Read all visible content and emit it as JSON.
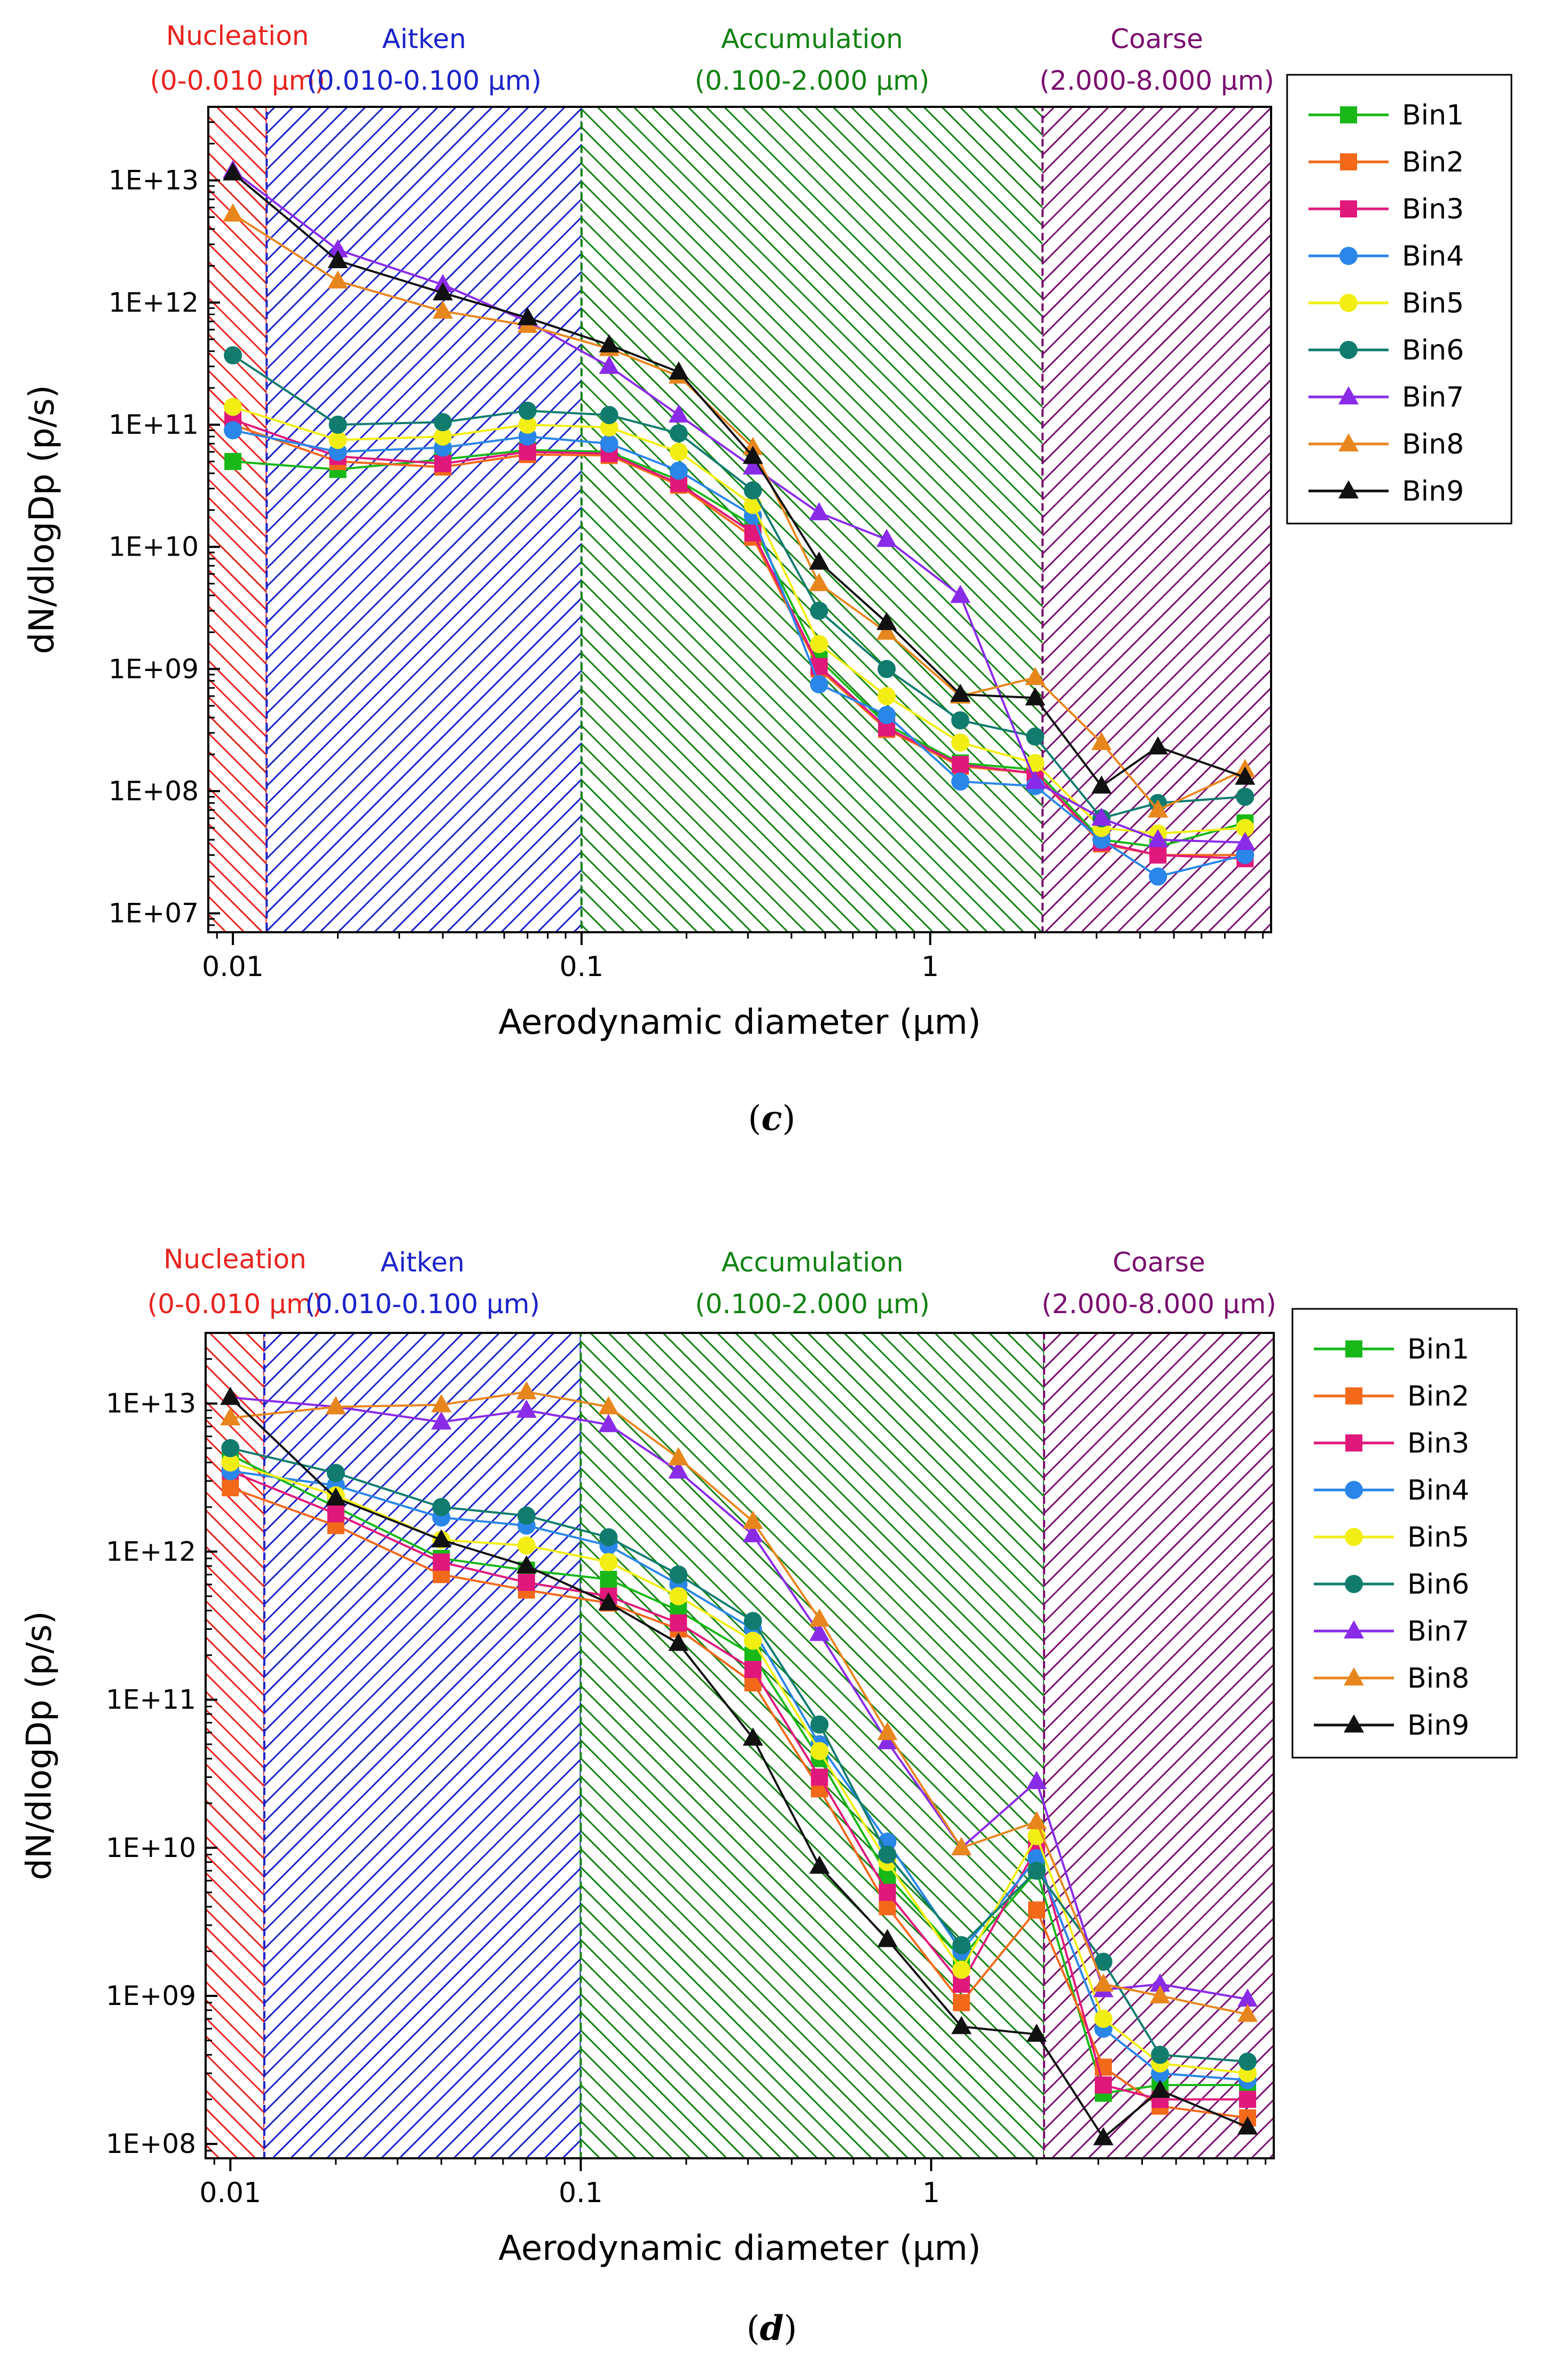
{
  "figure": {
    "panel_labels": [
      {
        "open": "(",
        "letter": "c",
        "close": ")"
      },
      {
        "open": "(",
        "letter": "d",
        "close": ")"
      }
    ]
  },
  "colors": {
    "nucleation": "#e8231e",
    "aitken": "#1a22c8",
    "accumulation": "#128212",
    "coarse": "#7a0f6e",
    "Bin1": "#18b818",
    "Bin2": "#f2691a",
    "Bin3": "#e0187c",
    "Bin4": "#2a86e8",
    "Bin5": "#f2ee14",
    "Bin6": "#117c6e",
    "Bin7": "#8a2be8",
    "Bin8": "#e8861e",
    "Bin9": "#111111"
  },
  "chart_data": [
    {
      "type": "line",
      "panel": "c",
      "xlabel": "Aerodynamic diameter (μm)",
      "ylabel": "dN/dlogDp (p/s)",
      "xscale": "log",
      "yscale": "log",
      "xlim": [
        0.0085,
        9.5
      ],
      "ylim": [
        7000000,
        40000000000000
      ],
      "xticks": [
        {
          "v": 0.01,
          "label": "0.01"
        },
        {
          "v": 0.1,
          "label": "0.1"
        },
        {
          "v": 1,
          "label": "1"
        }
      ],
      "yticks": [
        {
          "v": 10000000,
          "label": "1E+07"
        },
        {
          "v": 100000000,
          "label": "1E+08"
        },
        {
          "v": 1000000000,
          "label": "1E+09"
        },
        {
          "v": 10000000000,
          "label": "1E+10"
        },
        {
          "v": 100000000000,
          "label": "1E+11"
        },
        {
          "v": 1000000000000,
          "label": "1E+12"
        },
        {
          "v": 10000000000000,
          "label": "1E+13"
        }
      ],
      "regions": [
        {
          "key": "nucleation",
          "name": "Nucleation",
          "range_label": "(0-0.010 μm)",
          "x0": 0.0085,
          "x1": 0.0125
        },
        {
          "key": "aitken",
          "name": "Aitken",
          "range_label": "(0.010-0.100 μm)",
          "x0": 0.0125,
          "x1": 0.1
        },
        {
          "key": "accumulation",
          "name": "Accumulation",
          "range_label": "(0.100-2.000 μm)",
          "x0": 0.1,
          "x1": 2.1
        },
        {
          "key": "coarse",
          "name": "Coarse",
          "range_label": "(2.000-8.000 μm)",
          "x0": 2.1,
          "x1": 9.5
        }
      ],
      "x": [
        0.01,
        0.02,
        0.04,
        0.07,
        0.12,
        0.19,
        0.31,
        0.48,
        0.75,
        1.22,
        2.0,
        3.1,
        4.5,
        8.0
      ],
      "series": [
        {
          "name": "Bin1",
          "marker": "square",
          "values": [
            50000000000,
            43000000000,
            52000000000,
            62000000000,
            60000000000,
            35000000000,
            15000000000,
            1200000000,
            350000000,
            170000000,
            150000000,
            40000000,
            35000000,
            55000000
          ]
        },
        {
          "name": "Bin2",
          "marker": "square",
          "values": [
            100000000000,
            50000000000,
            45000000000,
            57000000000,
            56000000000,
            32000000000,
            12000000000,
            1000000000,
            320000000,
            160000000,
            140000000,
            37000000,
            30000000,
            30000000
          ]
        },
        {
          "name": "Bin3",
          "marker": "square",
          "values": [
            110000000000,
            55000000000,
            48000000000,
            60000000000,
            58000000000,
            33000000000,
            13000000000,
            1050000000,
            330000000,
            165000000,
            140000000,
            38000000,
            30000000,
            28000000
          ]
        },
        {
          "name": "Bin4",
          "marker": "circle",
          "values": [
            90000000000,
            60000000000,
            65000000000,
            80000000000,
            70000000000,
            42000000000,
            18000000000,
            750000000,
            420000000,
            120000000,
            110000000,
            40000000,
            20000000,
            30000000
          ]
        },
        {
          "name": "Bin5",
          "marker": "circle",
          "values": [
            140000000000,
            75000000000,
            80000000000,
            100000000000,
            95000000000,
            60000000000,
            22000000000,
            1600000000,
            600000000,
            250000000,
            170000000,
            50000000,
            45000000,
            50000000
          ]
        },
        {
          "name": "Bin6",
          "marker": "circle",
          "values": [
            370000000000,
            100000000000,
            105000000000,
            130000000000,
            120000000000,
            85000000000,
            29000000000,
            3000000000,
            1000000000,
            380000000,
            280000000,
            60000000,
            80000000,
            90000000
          ]
        },
        {
          "name": "Bin7",
          "marker": "triangle",
          "values": [
            12000000000000,
            2700000000000,
            1400000000000,
            700000000000,
            300000000000,
            120000000000,
            45000000000,
            19000000000,
            11500000000,
            4000000000,
            120000000,
            60000000,
            40000000,
            38000000
          ]
        },
        {
          "name": "Bin8",
          "marker": "triangle",
          "values": [
            5300000000000,
            1500000000000,
            850000000000,
            650000000000,
            420000000000,
            250000000000,
            65000000000,
            5000000000,
            2000000000,
            600000000,
            850000000,
            250000000,
            70000000,
            150000000
          ]
        },
        {
          "name": "Bin9",
          "marker": "triangle",
          "values": [
            11500000000000,
            2200000000000,
            1200000000000,
            750000000000,
            450000000000,
            270000000000,
            55000000000,
            7500000000,
            2400000000,
            620000000,
            580000000,
            110000000,
            230000000,
            130000000
          ]
        }
      ]
    },
    {
      "type": "line",
      "panel": "d",
      "xlabel": "Aerodynamic diameter (μm)",
      "ylabel": "dN/dlogDp (p/s)",
      "xscale": "log",
      "yscale": "log",
      "xlim": [
        0.0085,
        9.5
      ],
      "ylim": [
        80000000,
        30000000000000
      ],
      "xticks": [
        {
          "v": 0.01,
          "label": "0.01"
        },
        {
          "v": 0.1,
          "label": "0.1"
        },
        {
          "v": 1,
          "label": "1"
        }
      ],
      "yticks": [
        {
          "v": 100000000,
          "label": "1E+08"
        },
        {
          "v": 1000000000,
          "label": "1E+09"
        },
        {
          "v": 10000000000,
          "label": "1E+10"
        },
        {
          "v": 100000000000,
          "label": "1E+11"
        },
        {
          "v": 1000000000000,
          "label": "1E+12"
        },
        {
          "v": 10000000000000,
          "label": "1E+13"
        }
      ],
      "regions": [
        {
          "key": "nucleation",
          "name": "Nucleation",
          "range_label": "(0-0.010 μm)",
          "x0": 0.0085,
          "x1": 0.0125
        },
        {
          "key": "aitken",
          "name": "Aitken",
          "range_label": "(0.010-0.100 μm)",
          "x0": 0.0125,
          "x1": 0.1
        },
        {
          "key": "accumulation",
          "name": "Accumulation",
          "range_label": "(0.100-2.000 μm)",
          "x0": 0.1,
          "x1": 2.1
        },
        {
          "key": "coarse",
          "name": "Coarse",
          "range_label": "(2.000-8.000 μm)",
          "x0": 2.1,
          "x1": 9.5
        }
      ],
      "x": [
        0.01,
        0.02,
        0.04,
        0.07,
        0.12,
        0.19,
        0.31,
        0.48,
        0.75,
        1.22,
        2.0,
        3.1,
        4.5,
        8.0
      ],
      "series": [
        {
          "name": "Bin1",
          "marker": "square",
          "values": [
            4500000000000,
            2000000000000,
            900000000000,
            750000000000,
            650000000000,
            400000000000,
            200000000000,
            40000000000,
            6500000000,
            1800000000,
            7000000000,
            220000000,
            250000000,
            250000000
          ]
        },
        {
          "name": "Bin2",
          "marker": "square",
          "values": [
            2700000000000,
            1500000000000,
            700000000000,
            550000000000,
            450000000000,
            300000000000,
            130000000000,
            25000000000,
            4000000000,
            900000000,
            3800000000,
            330000000,
            180000000,
            150000000
          ]
        },
        {
          "name": "Bin3",
          "marker": "square",
          "values": [
            3500000000000,
            1800000000000,
            850000000000,
            620000000000,
            500000000000,
            330000000000,
            160000000000,
            30000000000,
            5000000000,
            1200000000,
            10000000000,
            250000000,
            200000000,
            200000000
          ]
        },
        {
          "name": "Bin4",
          "marker": "circle",
          "values": [
            3500000000000,
            2800000000000,
            1700000000000,
            1500000000000,
            1100000000000,
            600000000000,
            300000000000,
            50000000000,
            11000000000,
            2000000000,
            8500000000,
            600000000,
            300000000,
            270000000
          ]
        },
        {
          "name": "Bin5",
          "marker": "circle",
          "values": [
            4000000000000,
            2400000000000,
            1200000000000,
            1100000000000,
            850000000000,
            500000000000,
            250000000000,
            45000000000,
            8000000000,
            1500000000,
            12000000000,
            700000000,
            350000000,
            300000000
          ]
        },
        {
          "name": "Bin6",
          "marker": "circle",
          "values": [
            5000000000000,
            3400000000000,
            2000000000000,
            1750000000000,
            1250000000000,
            700000000000,
            340000000000,
            68000000000,
            9000000000,
            2200000000,
            7000000000,
            1700000000,
            400000000,
            360000000
          ]
        },
        {
          "name": "Bin7",
          "marker": "triangle",
          "values": [
            11000000000000,
            9500000000000,
            7500000000000,
            9000000000000,
            7200000000000,
            3500000000000,
            1300000000000,
            280000000000,
            52000000000,
            10000000000,
            28000000000,
            1100000000,
            1200000000,
            950000000
          ]
        },
        {
          "name": "Bin8",
          "marker": "triangle",
          "values": [
            8000000000000,
            9500000000000,
            9800000000000,
            12000000000000,
            9500000000000,
            4300000000000,
            1600000000000,
            350000000000,
            60000000000,
            10000000000,
            15000000000,
            1200000000,
            1000000000,
            750000000
          ]
        },
        {
          "name": "Bin9",
          "marker": "triangle",
          "values": [
            11000000000000,
            2300000000000,
            1200000000000,
            800000000000,
            450000000000,
            240000000000,
            55000000000,
            7500000000,
            2400000000,
            620000000,
            550000000,
            110000000,
            230000000,
            130000000
          ]
        }
      ]
    }
  ]
}
